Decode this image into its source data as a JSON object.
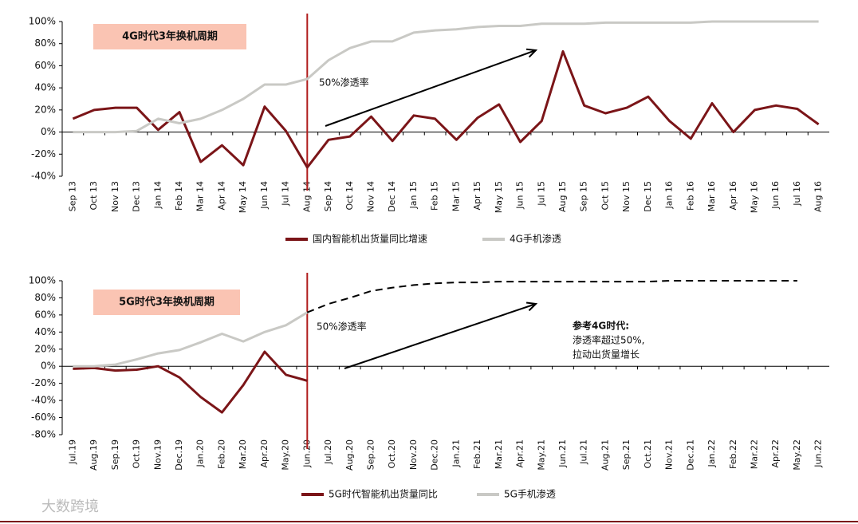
{
  "chart_data": [
    {
      "type": "line",
      "box_label": "4G时代3年换机周期",
      "annotations": [
        "50%渗透率"
      ],
      "vline_at": "Aug 14",
      "categories": [
        "Sep 13",
        "Oct 13",
        "Nov 13",
        "Dec 13",
        "Jan 14",
        "Feb 14",
        "Mar 14",
        "Apr 14",
        "May 14",
        "Jun 14",
        "Jul 14",
        "Aug 14",
        "Sep 14",
        "Oct 14",
        "Nov 14",
        "Dec 14",
        "Jan 15",
        "Feb 15",
        "Mar 15",
        "Apr 15",
        "May 15",
        "Jun 15",
        "Jul 15",
        "Aug 15",
        "Sep 15",
        "Oct 15",
        "Nov 15",
        "Dec 15",
        "Jan 16",
        "Feb 16",
        "Mar 16",
        "Apr 16",
        "May 16",
        "Jun 16",
        "Jul 16",
        "Aug 16"
      ],
      "series": [
        {
          "name": "国内智能机出货量同比增速",
          "color": "#7b1518",
          "values": [
            12,
            20,
            22,
            22,
            2,
            18,
            -27,
            -12,
            -30,
            23,
            1,
            -32,
            -7,
            -4,
            14,
            -8,
            15,
            12,
            -7,
            13,
            25,
            -9,
            10,
            73,
            24,
            17,
            22,
            32,
            10,
            -6,
            26,
            0,
            20,
            24,
            21,
            7
          ]
        },
        {
          "name": "4G手机渗透",
          "color": "#c9c9c5",
          "values": [
            0,
            0,
            0,
            1,
            12,
            8,
            12,
            20,
            30,
            43,
            43,
            48,
            65,
            76,
            82,
            82,
            90,
            92,
            93,
            95,
            96,
            96,
            98,
            98,
            98,
            99,
            99,
            99,
            99,
            99,
            100,
            100,
            100,
            100,
            100,
            100
          ]
        }
      ],
      "ylim": [
        -40,
        100
      ],
      "yticks": [
        {
          "value": -40,
          "label": "-40%"
        },
        {
          "value": -20,
          "label": "-20%"
        },
        {
          "value": 0,
          "label": "0%"
        },
        {
          "value": 20,
          "label": "20%"
        },
        {
          "value": 40,
          "label": "40%"
        },
        {
          "value": 60,
          "label": "60%"
        },
        {
          "value": 80,
          "label": "80%"
        },
        {
          "value": 100,
          "label": "100%"
        }
      ]
    },
    {
      "type": "line",
      "box_label": "5G时代3年换机周期",
      "annotations": [
        "50%渗透率",
        "参考4G时代:",
        "渗透率超过50%,",
        "拉动出货量增长"
      ],
      "vline_at": "Jun.20",
      "categories": [
        "Jul.19",
        "Aug.19",
        "Sep.19",
        "Oct.19",
        "Nov.19",
        "Dec.19",
        "Jan.20",
        "Feb.20",
        "Mar.20",
        "Apr.20",
        "May.20",
        "Jun.20",
        "Jul.20",
        "Aug.20",
        "Sep.20",
        "Oct.20",
        "Nov.20",
        "Dec.20",
        "Jan.21",
        "Feb.21",
        "Mar.21",
        "Apr.21",
        "May.21",
        "Jun.21",
        "Jul.21",
        "Aug.21",
        "Sep.21",
        "Oct.21",
        "Nov.21",
        "Dec.21",
        "Jan.22",
        "Feb.22",
        "Mar.22",
        "Apr.22",
        "May.22",
        "Jun.22"
      ],
      "series": [
        {
          "name": "5G时代智能机出货量同比",
          "color": "#7b1518",
          "values": [
            -3,
            -2,
            -5,
            -4,
            0,
            -13,
            -36,
            -54,
            -22,
            17,
            -10,
            -17,
            null,
            null,
            null,
            null,
            null,
            null,
            null,
            null,
            null,
            null,
            null,
            null,
            null,
            null,
            null,
            null,
            null,
            null,
            null,
            null,
            null,
            null,
            null,
            null
          ]
        },
        {
          "name": "5G手机渗透",
          "color": "#c9c9c5",
          "values": [
            0,
            0,
            2,
            8,
            15,
            19,
            28,
            38,
            29,
            40,
            48,
            63,
            null,
            null,
            null,
            null,
            null,
            null,
            null,
            null,
            null,
            null,
            null,
            null,
            null,
            null,
            null,
            null,
            null,
            null,
            null,
            null,
            null,
            null,
            null,
            null
          ]
        },
        {
          "color": "#000000",
          "dashed": true,
          "values": [
            null,
            null,
            null,
            null,
            null,
            null,
            null,
            null,
            null,
            null,
            null,
            63,
            73,
            80,
            88,
            92,
            95,
            97,
            98,
            98,
            99,
            99,
            99,
            99,
            99,
            99,
            99,
            99,
            100,
            100,
            100,
            100,
            100,
            100,
            100,
            null
          ]
        }
      ],
      "ylim": [
        -80,
        100
      ],
      "yticks": [
        {
          "value": -80,
          "label": "-80%"
        },
        {
          "value": -60,
          "label": "-60%"
        },
        {
          "value": -40,
          "label": "-40%"
        },
        {
          "value": -20,
          "label": "-20%"
        },
        {
          "value": 0,
          "label": "0%"
        },
        {
          "value": 20,
          "label": "20%"
        },
        {
          "value": 40,
          "label": "40%"
        },
        {
          "value": 60,
          "label": "60%"
        },
        {
          "value": 80,
          "label": "80%"
        },
        {
          "value": 100,
          "label": "100%"
        }
      ]
    }
  ],
  "watermark": "大数跨境"
}
